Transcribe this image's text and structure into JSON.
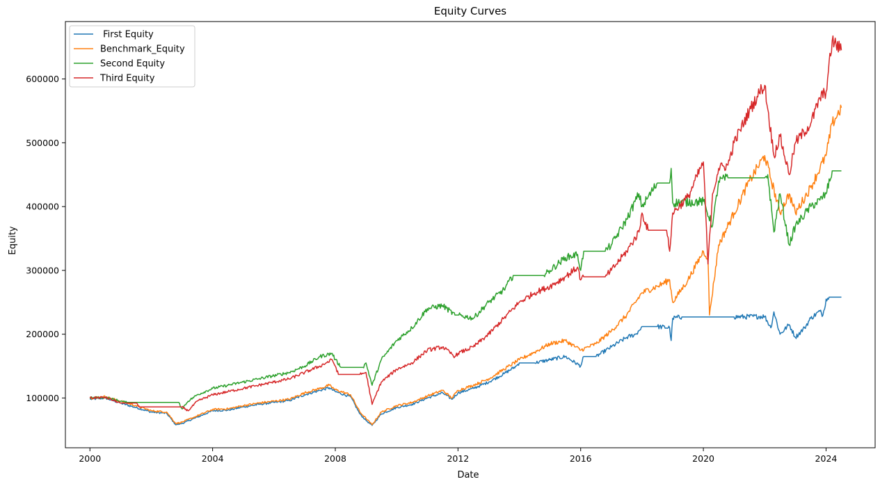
{
  "chart_data": {
    "type": "line",
    "title": "Equity Curves",
    "xlabel": "Date",
    "ylabel": "Equity",
    "xlim": [
      1999.2,
      2025.6
    ],
    "ylim": [
      22000,
      690000
    ],
    "x_ticks": [
      2000,
      2004,
      2008,
      2012,
      2016,
      2020,
      2024
    ],
    "x_tick_labels": [
      "2000",
      "2004",
      "2008",
      "2012",
      "2016",
      "2020",
      "2024"
    ],
    "y_ticks": [
      100000,
      200000,
      300000,
      400000,
      500000,
      600000
    ],
    "y_tick_labels": [
      "100000",
      "200000",
      "300000",
      "400000",
      "500000",
      "600000"
    ],
    "grid": false,
    "legend_position": "top-left",
    "series": [
      {
        "name": " First Equity",
        "color": "#1f77b4",
        "x": [
          2000.0,
          2000.5,
          2001.0,
          2001.5,
          2002.0,
          2002.5,
          2002.8,
          2003.0,
          2003.5,
          2004.0,
          2004.5,
          2005.0,
          2005.5,
          2006.0,
          2006.5,
          2007.0,
          2007.5,
          2007.8,
          2008.0,
          2008.5,
          2008.8,
          2009.0,
          2009.2,
          2009.5,
          2010.0,
          2010.5,
          2011.0,
          2011.5,
          2011.8,
          2012.0,
          2012.5,
          2013.0,
          2013.5,
          2013.9,
          2014.0,
          2014.5,
          2015.0,
          2015.5,
          2016.0,
          2016.1,
          2016.5,
          2017.0,
          2017.5,
          2017.8,
          2018.0,
          2018.5,
          2018.9,
          2018.95,
          2019.0,
          2019.3,
          2020.0,
          2021.0,
          2022.0,
          2022.2,
          2022.3,
          2022.5,
          2022.8,
          2023.0,
          2023.3,
          2023.5,
          2023.8,
          2023.9,
          2024.0,
          2024.1,
          2024.5
        ],
        "y": [
          98000,
          100000,
          92000,
          85000,
          78000,
          76000,
          58000,
          60000,
          70000,
          80000,
          81000,
          86000,
          90000,
          93000,
          96000,
          105000,
          112000,
          116000,
          110000,
          102000,
          75000,
          65000,
          57000,
          75000,
          85000,
          90000,
          100000,
          108000,
          98000,
          108000,
          115000,
          125000,
          138000,
          150000,
          155000,
          155000,
          160000,
          165000,
          150000,
          165000,
          165000,
          180000,
          195000,
          200000,
          212000,
          212000,
          210000,
          190000,
          225000,
          227000,
          227000,
          227000,
          228000,
          210000,
          235000,
          200000,
          215000,
          195000,
          210000,
          225000,
          236000,
          230000,
          255000,
          258000,
          258000
        ]
      },
      {
        "name": "Benchmark_Equity",
        "color": "#ff7f0e",
        "x": [
          2000.0,
          2000.5,
          2001.0,
          2001.5,
          2002.0,
          2002.5,
          2002.8,
          2003.0,
          2003.5,
          2004.0,
          2004.5,
          2005.0,
          2005.5,
          2006.0,
          2006.5,
          2007.0,
          2007.5,
          2007.8,
          2008.0,
          2008.5,
          2008.8,
          2009.0,
          2009.2,
          2009.5,
          2010.0,
          2010.5,
          2011.0,
          2011.5,
          2011.8,
          2012.0,
          2012.5,
          2013.0,
          2013.5,
          2014.0,
          2014.5,
          2015.0,
          2015.5,
          2016.0,
          2016.5,
          2017.0,
          2017.5,
          2018.0,
          2018.5,
          2018.9,
          2019.0,
          2019.5,
          2020.0,
          2020.15,
          2020.2,
          2020.5,
          2021.0,
          2021.5,
          2022.0,
          2022.5,
          2022.8,
          2023.0,
          2023.5,
          2024.0,
          2024.2,
          2024.5
        ],
        "y": [
          100000,
          102000,
          95000,
          88000,
          80000,
          78000,
          60000,
          62000,
          72000,
          82000,
          83000,
          88000,
          92000,
          95000,
          98000,
          108000,
          115000,
          120000,
          113000,
          105000,
          78000,
          68000,
          58000,
          78000,
          88000,
          93000,
          103000,
          112000,
          100000,
          112000,
          120000,
          130000,
          145000,
          160000,
          172000,
          185000,
          190000,
          175000,
          185000,
          205000,
          230000,
          265000,
          275000,
          285000,
          250000,
          285000,
          330000,
          320000,
          230000,
          340000,
          390000,
          440000,
          480000,
          390000,
          420000,
          390000,
          430000,
          480000,
          530000,
          555000
        ]
      },
      {
        "name": "Second Equity",
        "color": "#2ca02c",
        "x": [
          2000.0,
          2000.5,
          2001.0,
          2001.2,
          2001.5,
          2002.0,
          2002.5,
          2002.9,
          2003.0,
          2003.2,
          2003.5,
          2004.0,
          2004.5,
          2005.0,
          2005.5,
          2006.0,
          2006.5,
          2007.0,
          2007.5,
          2007.9,
          2008.0,
          2008.2,
          2008.9,
          2009.0,
          2009.2,
          2009.5,
          2010.0,
          2010.5,
          2011.0,
          2011.5,
          2011.9,
          2012.0,
          2012.5,
          2013.0,
          2013.5,
          2013.8,
          2014.0,
          2014.8,
          2015.0,
          2015.5,
          2015.9,
          2016.0,
          2016.1,
          2016.8,
          2017.0,
          2017.5,
          2017.9,
          2018.0,
          2018.5,
          2018.9,
          2018.95,
          2019.0,
          2020.0,
          2020.3,
          2020.5,
          2020.8,
          2021.0,
          2021.5,
          2022.0,
          2022.1,
          2022.3,
          2022.5,
          2022.8,
          2023.0,
          2023.5,
          2023.8,
          2024.0,
          2024.2,
          2024.5
        ],
        "y": [
          100000,
          101000,
          95000,
          93000,
          93000,
          93000,
          93000,
          93000,
          83000,
          95000,
          105000,
          115000,
          120000,
          125000,
          130000,
          135000,
          140000,
          150000,
          165000,
          170000,
          160000,
          148000,
          148000,
          155000,
          120000,
          160000,
          190000,
          210000,
          240000,
          245000,
          230000,
          230000,
          225000,
          250000,
          270000,
          292000,
          292000,
          292000,
          300000,
          320000,
          325000,
          300000,
          330000,
          330000,
          340000,
          380000,
          420000,
          400000,
          437000,
          437000,
          460000,
          406000,
          408000,
          370000,
          440000,
          445000,
          445000,
          445000,
          445000,
          450000,
          360000,
          420000,
          340000,
          370000,
          400000,
          410000,
          420000,
          456000,
          456000
        ]
      },
      {
        "name": "Third Equity",
        "color": "#d62728",
        "x": [
          2000.0,
          2000.5,
          2001.0,
          2001.5,
          2001.6,
          2002.5,
          2003.0,
          2003.2,
          2003.5,
          2004.0,
          2004.5,
          2005.0,
          2005.5,
          2006.0,
          2006.5,
          2007.0,
          2007.5,
          2007.9,
          2008.0,
          2008.1,
          2008.8,
          2009.0,
          2009.2,
          2009.5,
          2010.0,
          2010.5,
          2011.0,
          2011.5,
          2011.9,
          2012.0,
          2012.5,
          2013.0,
          2013.5,
          2014.0,
          2014.5,
          2015.0,
          2015.5,
          2015.9,
          2016.0,
          2016.1,
          2016.5,
          2016.8,
          2017.0,
          2017.5,
          2017.9,
          2018.0,
          2018.2,
          2018.8,
          2018.9,
          2019.0,
          2019.5,
          2020.0,
          2020.15,
          2020.3,
          2020.5,
          2020.8,
          2021.0,
          2021.5,
          2021.9,
          2022.0,
          2022.3,
          2022.5,
          2022.8,
          2023.0,
          2023.5,
          2023.8,
          2024.0,
          2024.2,
          2024.5
        ],
        "y": [
          100000,
          101000,
          92000,
          92000,
          86000,
          86000,
          86000,
          80000,
          95000,
          105000,
          110000,
          115000,
          120000,
          125000,
          130000,
          140000,
          150000,
          160000,
          150000,
          137000,
          137000,
          140000,
          90000,
          125000,
          145000,
          155000,
          175000,
          180000,
          165000,
          170000,
          180000,
          200000,
          225000,
          250000,
          265000,
          275000,
          290000,
          305000,
          285000,
          290000,
          290000,
          290000,
          300000,
          330000,
          360000,
          390000,
          363000,
          363000,
          330000,
          390000,
          415000,
          470000,
          310000,
          420000,
          460000,
          465000,
          500000,
          550000,
          585000,
          590000,
          480000,
          510000,
          450000,
          500000,
          530000,
          570000,
          580000,
          660000,
          645000
        ]
      }
    ]
  }
}
